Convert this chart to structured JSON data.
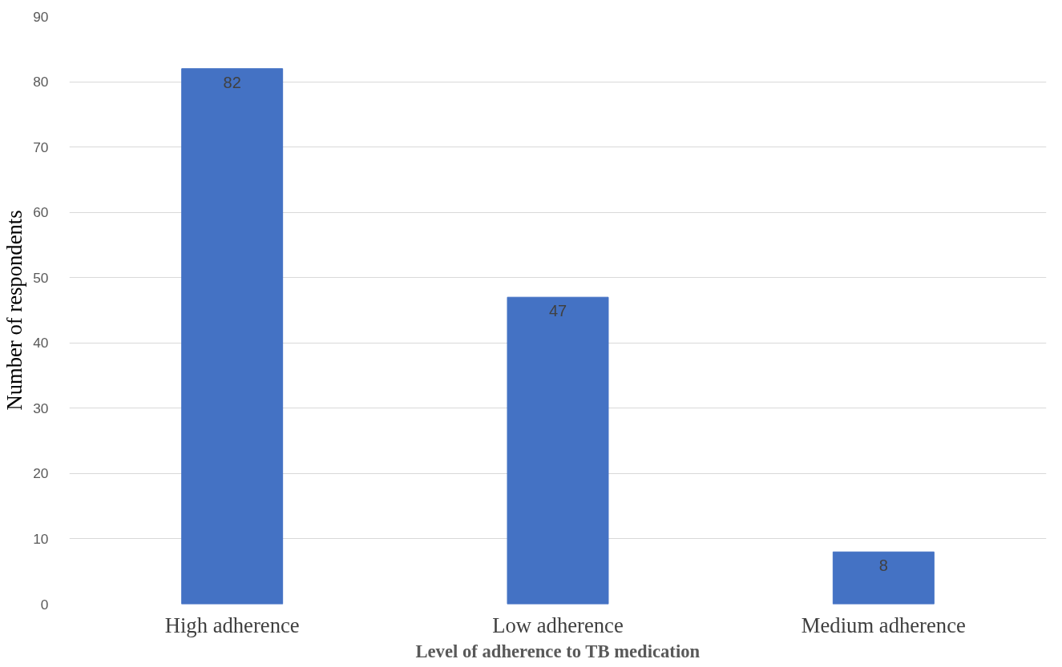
{
  "chart_data": {
    "type": "bar",
    "xlabel": "Level of adherence to TB medication",
    "ylabel": "Number of respondents",
    "categories": [
      "High adherence",
      "Low adherence",
      "Medium adherence"
    ],
    "values": [
      82,
      47,
      8
    ],
    "color": "#4472c4",
    "data_labels": true,
    "ylim": [
      0,
      90
    ],
    "yticks": [
      0,
      10,
      20,
      30,
      40,
      50,
      60,
      70,
      80,
      90
    ],
    "grid": "y"
  }
}
